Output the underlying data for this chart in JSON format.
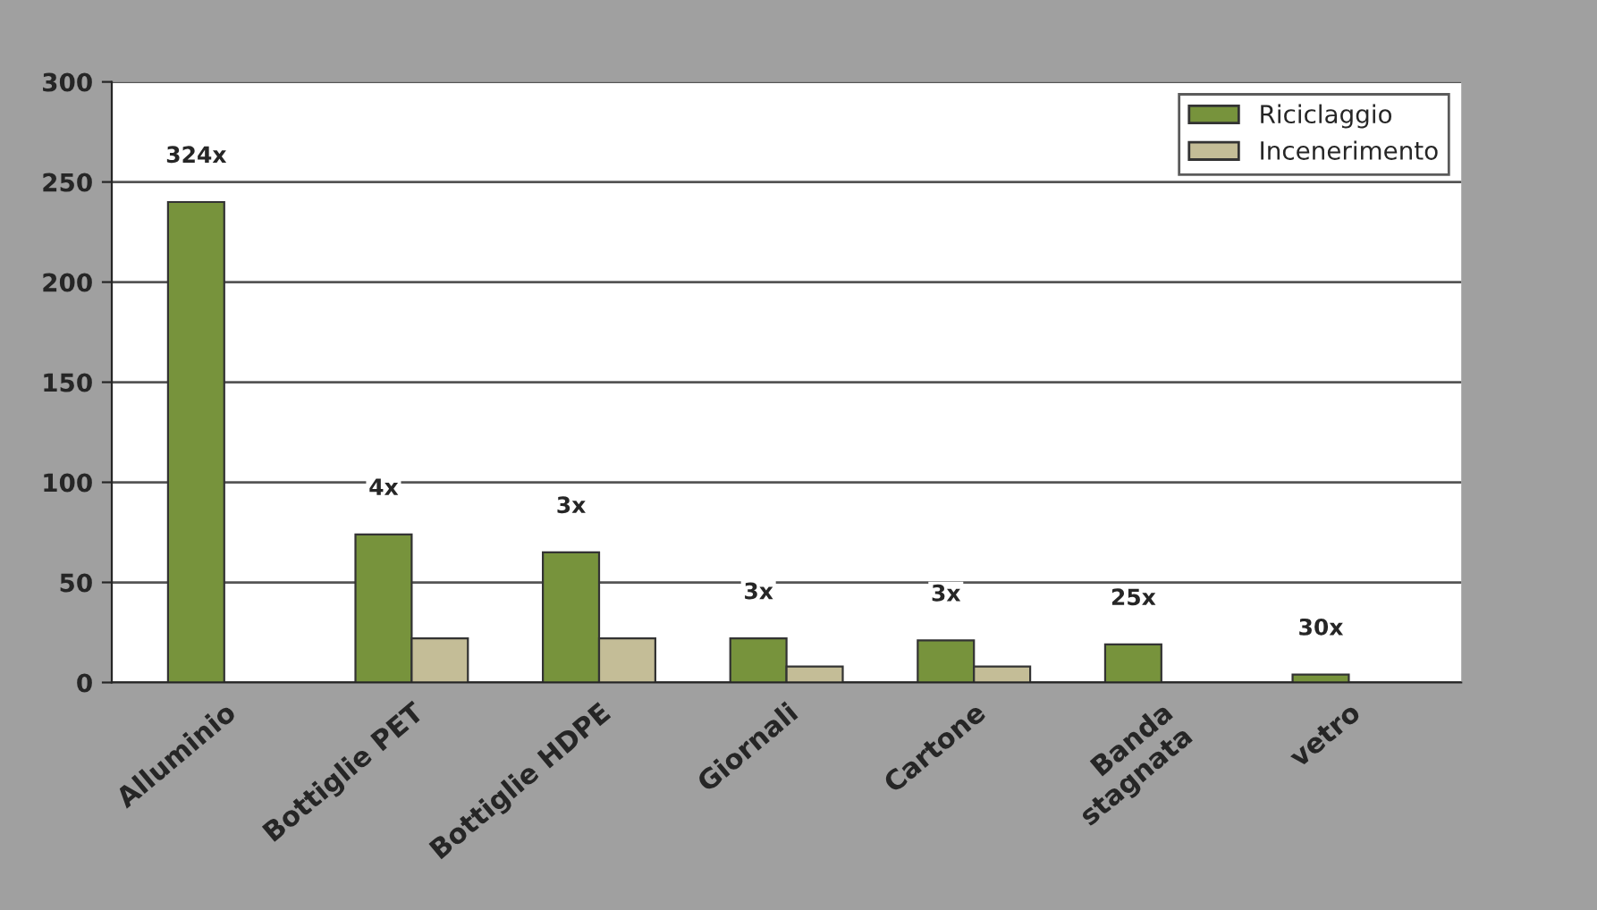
{
  "chart_data": {
    "type": "bar",
    "categories": [
      "Alluminio",
      "Bottiglie PET",
      "Bottiglie HDPE",
      "Giornali",
      "Cartone",
      "Banda\nstagnata",
      "vetro"
    ],
    "series": [
      {
        "name": "Riciclaggio",
        "color": "#77933c",
        "values": [
          240,
          74,
          65,
          22,
          21,
          19,
          4
        ]
      },
      {
        "name": "Incenerimento",
        "color": "#c4bd97",
        "values": [
          null,
          22,
          22,
          8,
          8,
          null,
          null
        ]
      }
    ],
    "ylim": [
      0,
      300
    ],
    "yticks": [
      0,
      50,
      100,
      150,
      200,
      250,
      300
    ],
    "grid": "y",
    "legend": "top right",
    "annotations": [
      "324x",
      "4x",
      "3x",
      "3x",
      "3x",
      "25x",
      "30x"
    ]
  }
}
